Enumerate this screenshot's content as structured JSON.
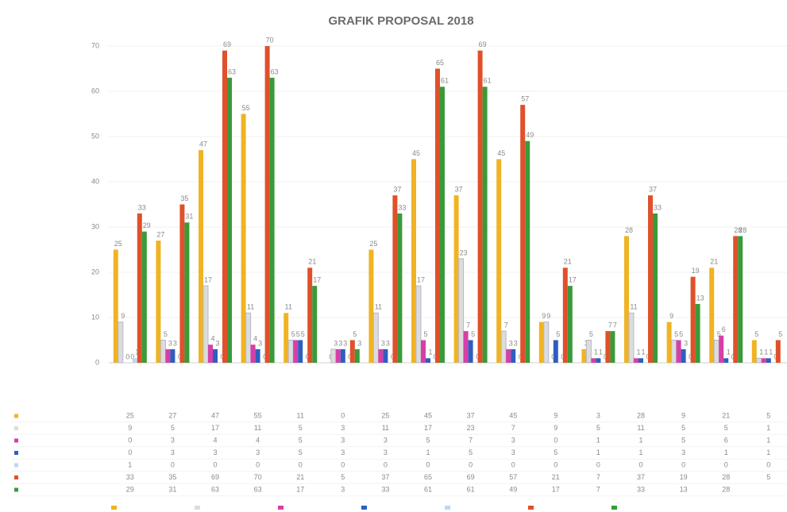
{
  "chart_data": {
    "type": "bar",
    "title": "GRAFIK PROPOSAL 2018",
    "categories": [
      null,
      null,
      null,
      null,
      null,
      null,
      null,
      null,
      null,
      null,
      null,
      null,
      null,
      null,
      null,
      null
    ],
    "ylim": [
      0,
      70
    ],
    "yticks": [
      0,
      10,
      20,
      30,
      40,
      50,
      60,
      70
    ],
    "grid": true,
    "series": [
      {
        "name": null,
        "color": "#f0b323",
        "values": [
          25,
          27,
          47,
          55,
          11,
          0,
          25,
          45,
          37,
          45,
          9,
          3,
          28,
          9,
          21,
          5
        ]
      },
      {
        "name": null,
        "color": "#dcdcdc",
        "values": [
          9,
          5,
          17,
          11,
          5,
          3,
          11,
          17,
          23,
          7,
          9,
          5,
          11,
          5,
          5,
          1
        ]
      },
      {
        "name": null,
        "color": "#d63fa8",
        "values": [
          0,
          3,
          4,
          4,
          5,
          3,
          3,
          5,
          7,
          3,
          0,
          1,
          1,
          5,
          6,
          1
        ]
      },
      {
        "name": null,
        "color": "#2e5fbf",
        "values": [
          0,
          3,
          3,
          3,
          5,
          3,
          3,
          1,
          5,
          3,
          5,
          1,
          1,
          3,
          1,
          1
        ]
      },
      {
        "name": null,
        "color": "#bdd7ee",
        "values": [
          1,
          0,
          0,
          0,
          0,
          0,
          0,
          0,
          0,
          0,
          0,
          0,
          0,
          0,
          0,
          0
        ]
      },
      {
        "name": null,
        "color": "#e0502a",
        "values": [
          33,
          35,
          69,
          70,
          21,
          5,
          37,
          65,
          69,
          57,
          21,
          7,
          37,
          19,
          28,
          5
        ]
      },
      {
        "name": null,
        "color": "#3a9a3a",
        "values": [
          29,
          31,
          63,
          63,
          17,
          3,
          33,
          61,
          61,
          49,
          17,
          7,
          33,
          13,
          28,
          null
        ]
      }
    ]
  }
}
